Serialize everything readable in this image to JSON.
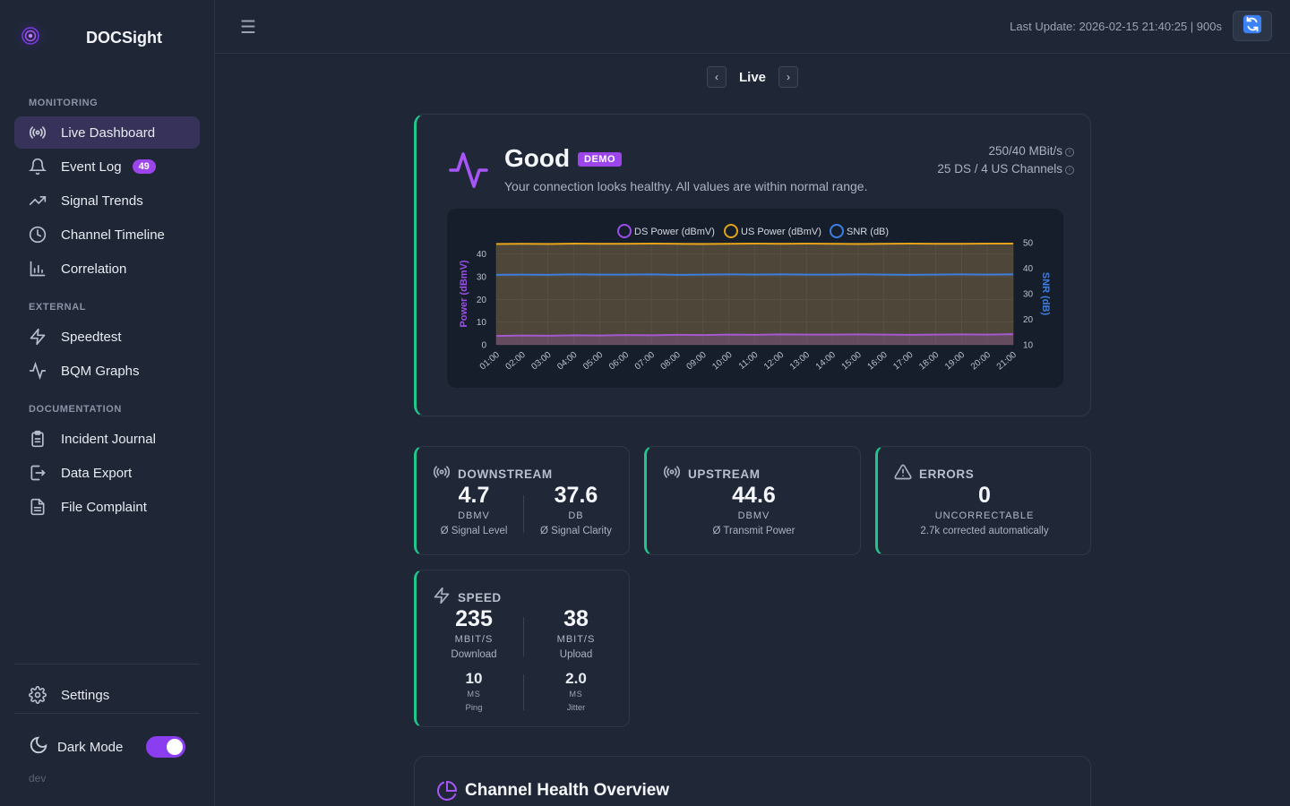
{
  "brand": {
    "name": "DOCSight"
  },
  "sidebar": {
    "sections": {
      "monitoring": "MONITORING",
      "external": "EXTERNAL",
      "documentation": "DOCUMENTATION"
    },
    "items": [
      {
        "label": "Live Dashboard",
        "icon": "broadcast-icon"
      },
      {
        "label": "Event Log",
        "icon": "bell-icon",
        "badge": "49"
      },
      {
        "label": "Signal Trends",
        "icon": "trending-up-icon"
      },
      {
        "label": "Channel Timeline",
        "icon": "clock-icon"
      },
      {
        "label": "Correlation",
        "icon": "bar-chart-icon"
      },
      {
        "label": "Speedtest",
        "icon": "lightning-icon"
      },
      {
        "label": "BQM Graphs",
        "icon": "pulse-icon"
      },
      {
        "label": "Incident Journal",
        "icon": "clipboard-icon"
      },
      {
        "label": "Data Export",
        "icon": "export-icon"
      },
      {
        "label": "File Complaint",
        "icon": "document-icon"
      }
    ],
    "settings": "Settings",
    "dark_mode": {
      "label": "Dark Mode",
      "enabled": true
    },
    "version": "dev"
  },
  "topbar": {
    "last_update": "Last Update: 2026-02-15 21:40:25 | 900s",
    "refresh_icon": "refresh-icon"
  },
  "live_nav": {
    "label": "Live",
    "prev": "‹",
    "next": "›"
  },
  "status": {
    "title": "Good",
    "badge": "DEMO",
    "description": "Your connection looks healthy. All values are within normal range.",
    "plan": "250/40 MBit/s",
    "channels": "25 DS / 4 US Channels"
  },
  "chart_data": {
    "type": "line",
    "legend": [
      "DS Power (dBmV)",
      "US Power (dBmV)",
      "SNR (dB)"
    ],
    "x": [
      "01:00",
      "02:00",
      "03:00",
      "04:00",
      "05:00",
      "06:00",
      "07:00",
      "08:00",
      "09:00",
      "10:00",
      "11:00",
      "12:00",
      "13:00",
      "14:00",
      "15:00",
      "16:00",
      "17:00",
      "18:00",
      "19:00",
      "20:00",
      "21:00"
    ],
    "ylabel_left": "Power (dBmV)",
    "ylabel_right": "SNR (dB)",
    "ylim_left": [
      0,
      45
    ],
    "yticks_left": [
      0,
      10,
      20,
      30,
      40
    ],
    "ylim_right": [
      10,
      50
    ],
    "yticks_right": [
      10,
      20,
      30,
      40,
      50
    ],
    "series": [
      {
        "name": "DS Power (dBmV)",
        "axis": "left",
        "color": "#9b4fe8",
        "values": [
          3.9,
          4.1,
          4.0,
          4.2,
          4.1,
          4.3,
          4.2,
          4.4,
          4.3,
          4.5,
          4.4,
          4.6,
          4.5,
          4.5,
          4.6,
          4.5,
          4.4,
          4.5,
          4.6,
          4.5,
          4.7
        ]
      },
      {
        "name": "US Power (dBmV)",
        "axis": "left",
        "color": "#e3a21a",
        "values": [
          44.4,
          44.5,
          44.4,
          44.6,
          44.5,
          44.5,
          44.6,
          44.5,
          44.4,
          44.5,
          44.6,
          44.5,
          44.6,
          44.5,
          44.4,
          44.5,
          44.6,
          44.5,
          44.5,
          44.6,
          44.6
        ]
      },
      {
        "name": "SNR (dB)",
        "axis": "right",
        "color": "#3d7fe0",
        "values": [
          37.4,
          37.5,
          37.4,
          37.6,
          37.5,
          37.5,
          37.6,
          37.4,
          37.5,
          37.6,
          37.5,
          37.6,
          37.5,
          37.5,
          37.6,
          37.5,
          37.4,
          37.5,
          37.6,
          37.5,
          37.6
        ]
      }
    ]
  },
  "downstream": {
    "label": "DOWNSTREAM",
    "power": {
      "value": "4.7",
      "unit": "DBMV",
      "sub": "Ø Signal Level"
    },
    "snr": {
      "value": "37.6",
      "unit": "DB",
      "sub": "Ø Signal Clarity"
    }
  },
  "upstream": {
    "label": "UPSTREAM",
    "power": {
      "value": "44.6",
      "unit": "DBMV",
      "sub": "Ø Transmit Power"
    }
  },
  "errors": {
    "label": "ERRORS",
    "value": "0",
    "unit": "UNCORRECTABLE",
    "sub": "2.7k corrected automatically"
  },
  "speed": {
    "label": "SPEED",
    "download": {
      "value": "235",
      "unit": "MBIT/S",
      "sub": "Download"
    },
    "upload": {
      "value": "38",
      "unit": "MBIT/S",
      "sub": "Upload"
    },
    "ping": {
      "value": "10",
      "unit": "MS",
      "sub": "Ping"
    },
    "jitter": {
      "value": "2.0",
      "unit": "MS",
      "sub": "Jitter"
    }
  },
  "health": {
    "title": "Channel Health Overview"
  },
  "colors": {
    "accent": "#9b45ea",
    "good": "#22c58b",
    "background": "#1f2736"
  }
}
